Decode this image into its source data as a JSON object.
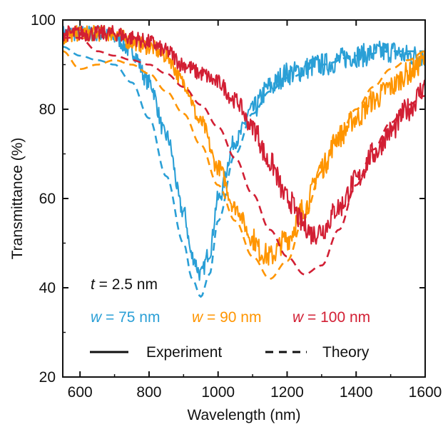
{
  "chart_data": {
    "type": "line",
    "title": "",
    "xlabel": "Wavelength (nm)",
    "ylabel": "Transmittance (%)",
    "xlim": [
      550,
      1600
    ],
    "ylim": [
      20,
      100
    ],
    "xticks": [
      600,
      800,
      1000,
      1200,
      1400,
      1600
    ],
    "yticks": [
      20,
      40,
      60,
      80,
      100
    ],
    "xtick_labels": [
      "600",
      "800",
      "1000",
      "1200",
      "1400",
      "1600"
    ],
    "ytick_labels": [
      "20",
      "40",
      "60",
      "80",
      "100"
    ],
    "grid": false,
    "thickness_label": {
      "var": "t",
      "rest": " = 2.5 nm"
    },
    "legend": {
      "position": "bottom",
      "experiment_label": "Experiment",
      "theory_label": "Theory"
    },
    "series": [
      {
        "name": "w = 75 nm",
        "var": "w",
        "rest": " = 75 nm",
        "color": "#2a9fd6",
        "experiment": {
          "x": [
            550,
            600,
            650,
            700,
            750,
            800,
            850,
            900,
            925,
            950,
            975,
            1000,
            1050,
            1100,
            1150,
            1200,
            1300,
            1400,
            1500,
            1550,
            1600
          ],
          "y": [
            97,
            97,
            97,
            96,
            93,
            86,
            74,
            57,
            47,
            43,
            48,
            60,
            73,
            80,
            85,
            88,
            90,
            92,
            93,
            92,
            92
          ]
        },
        "theory": {
          "x": [
            550,
            600,
            650,
            700,
            750,
            800,
            850,
            900,
            925,
            950,
            975,
            1000,
            1050,
            1100,
            1150,
            1200,
            1300,
            1400,
            1500,
            1600
          ],
          "y": [
            94,
            92,
            91,
            90,
            86,
            78,
            65,
            50,
            42,
            38,
            43,
            55,
            70,
            79,
            84,
            87,
            90,
            92,
            93,
            93
          ]
        }
      },
      {
        "name": "w = 90 nm",
        "var": "w",
        "rest": " = 90 nm",
        "color": "#ff9500",
        "experiment": {
          "x": [
            550,
            600,
            650,
            700,
            750,
            800,
            850,
            900,
            950,
            1000,
            1050,
            1100,
            1125,
            1150,
            1200,
            1250,
            1300,
            1350,
            1400,
            1450,
            1500,
            1550,
            1600
          ],
          "y": [
            96,
            97,
            97,
            97,
            95,
            94,
            92,
            86,
            77,
            67,
            58,
            51,
            48,
            47,
            51,
            58,
            67,
            74,
            78,
            82,
            85,
            88,
            91
          ]
        },
        "theory": {
          "x": [
            550,
            600,
            650,
            700,
            750,
            800,
            850,
            900,
            950,
            1000,
            1050,
            1100,
            1150,
            1200,
            1250,
            1300,
            1350,
            1400,
            1450,
            1500,
            1550,
            1600
          ],
          "y": [
            93,
            89,
            90,
            91,
            90,
            88,
            84,
            79,
            72,
            63,
            55,
            47,
            42,
            46,
            56,
            66,
            74,
            80,
            85,
            89,
            91,
            93
          ]
        }
      },
      {
        "name": "w = 100 nm",
        "var": "w",
        "rest": " = 100 nm",
        "color": "#d21f34",
        "experiment": {
          "x": [
            550,
            600,
            650,
            700,
            750,
            800,
            850,
            900,
            950,
            1000,
            1050,
            1100,
            1150,
            1200,
            1250,
            1275,
            1300,
            1350,
            1400,
            1450,
            1500,
            1550,
            1600
          ],
          "y": [
            97,
            97,
            97,
            97,
            96,
            95,
            93,
            90,
            88,
            86,
            82,
            76,
            68,
            60,
            54,
            52,
            53,
            58,
            64,
            70,
            75,
            80,
            85
          ]
        },
        "theory": {
          "x": [
            550,
            600,
            650,
            700,
            750,
            800,
            850,
            900,
            950,
            1000,
            1050,
            1100,
            1150,
            1200,
            1250,
            1300,
            1350,
            1400,
            1450,
            1500,
            1550,
            1600
          ],
          "y": [
            96,
            96,
            93,
            92,
            91,
            90,
            88,
            85,
            81,
            76,
            69,
            61,
            53,
            47,
            43,
            45,
            53,
            63,
            71,
            77,
            81,
            83
          ]
        }
      }
    ]
  }
}
